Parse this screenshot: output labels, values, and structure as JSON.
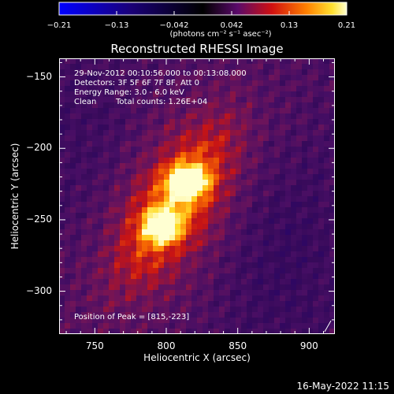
{
  "chart_data": {
    "type": "heatmap",
    "title": "Reconstructed RHESSI Image",
    "xlabel": "Heliocentric X (arcsec)",
    "ylabel": "Heliocentric Y (arcsec)",
    "xlim": [
      725,
      918
    ],
    "ylim": [
      -330,
      -137
    ],
    "x_ticks": [
      "750",
      "800",
      "850",
      "900"
    ],
    "x_tick_values": [
      750,
      800,
      850,
      900
    ],
    "y_ticks": [
      "−150",
      "−200",
      "−250",
      "−300"
    ],
    "y_tick_values": [
      -150,
      -200,
      -250,
      -300
    ],
    "colorbar": {
      "min": -0.21,
      "max": 0.21,
      "ticks": [
        "−0.21",
        "−0.13",
        "−0.042",
        "0.042",
        "0.13",
        "0.21"
      ],
      "tick_values": [
        -0.21,
        -0.126,
        -0.042,
        0.042,
        0.126,
        0.21
      ],
      "unit_label": "(photons cm⁻² s⁻¹ asec⁻²)"
    },
    "annotations": {
      "time_range": "29-Nov-2012 00:10:56.000 to 00:13:08.000",
      "detectors": "Detectors: 3F 5F 6F 7F 8F, Att 0",
      "energy": "Energy Range: 3.0 - 6.0 keV",
      "clean_label": "Clean",
      "total_counts": "Total counts: 1.26E+04",
      "peak": "Position of Peak = [815,-223]"
    },
    "sources": [
      {
        "x": 815,
        "y": -223,
        "peak": 0.21
      },
      {
        "x": 797,
        "y": -255,
        "peak": 0.19
      }
    ],
    "colors": {
      "cmap_low": "#0000ff",
      "cmap_mid": "#000000",
      "cmap_high": "#ffff00"
    }
  },
  "footer": {
    "timestamp": "16-May-2022 11:15"
  }
}
